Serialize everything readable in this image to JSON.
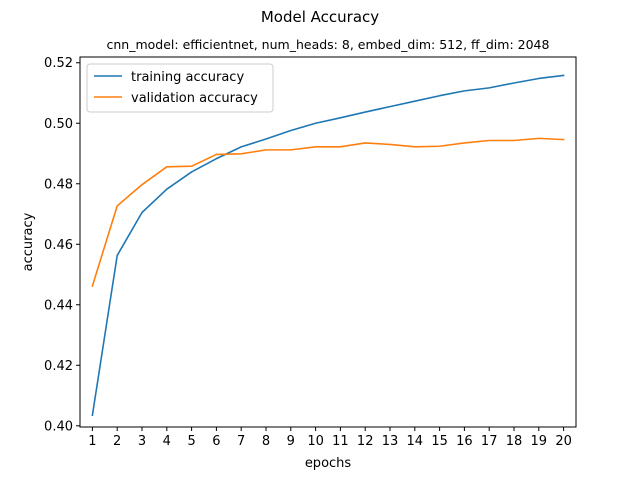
{
  "chart_data": {
    "type": "line",
    "title": "Model Accuracy",
    "subtitle": "cnn_model: efficientnet, num_heads: 8, embed_dim: 512, ff_dim: 2048",
    "xlabel": "epochs",
    "ylabel": "accuracy",
    "x": [
      1,
      2,
      3,
      4,
      5,
      6,
      7,
      8,
      9,
      10,
      11,
      12,
      13,
      14,
      15,
      16,
      17,
      18,
      19,
      20
    ],
    "xlim": [
      0.5,
      20.5
    ],
    "ylim": [
      0.3996,
      0.5219
    ],
    "yticks": [
      0.4,
      0.42,
      0.44,
      0.46,
      0.48,
      0.5,
      0.52
    ],
    "ytick_labels": [
      "0.40",
      "0.42",
      "0.44",
      "0.46",
      "0.48",
      "0.50",
      "0.52"
    ],
    "grid": false,
    "legend_position": "top-left",
    "series": [
      {
        "name": "training accuracy",
        "color": "#1f77b4",
        "values": [
          0.4035,
          0.4563,
          0.4705,
          0.4782,
          0.4839,
          0.4883,
          0.4922,
          0.4948,
          0.4976,
          0.5,
          0.5018,
          0.5037,
          0.5055,
          0.5073,
          0.5091,
          0.5107,
          0.5117,
          0.5133,
          0.5148,
          0.5158
        ]
      },
      {
        "name": "validation accuracy",
        "color": "#ff7f0e",
        "values": [
          0.4462,
          0.4727,
          0.4797,
          0.4856,
          0.4858,
          0.4897,
          0.4899,
          0.4912,
          0.4912,
          0.4922,
          0.4922,
          0.4935,
          0.493,
          0.4922,
          0.4924,
          0.4935,
          0.4943,
          0.4943,
          0.495,
          0.4946
        ]
      }
    ]
  }
}
